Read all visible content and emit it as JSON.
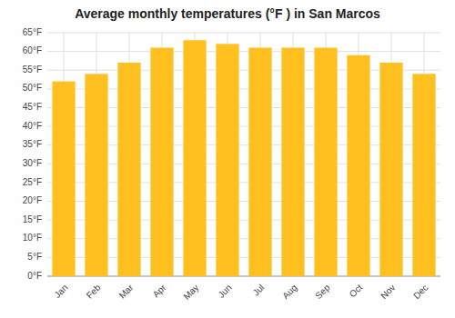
{
  "chart_data": {
    "type": "bar",
    "title": "Average monthly temperatures (°F ) in San Marcos",
    "categories": [
      "Jan",
      "Feb",
      "Mar",
      "Apr",
      "May",
      "Jun",
      "Jul",
      "Aug",
      "Sep",
      "Oct",
      "Nov",
      "Dec"
    ],
    "values": [
      52,
      54,
      57,
      61,
      63,
      62,
      61,
      61,
      61,
      59,
      57,
      54
    ],
    "color": "#FFC020",
    "ylim": [
      0,
      65
    ],
    "yticks": [
      {
        "value": 0,
        "label": "0°F"
      },
      {
        "value": 5,
        "label": "5°F"
      },
      {
        "value": 10,
        "label": "10°F"
      },
      {
        "value": 15,
        "label": "15°F"
      },
      {
        "value": 20,
        "label": "20°F"
      },
      {
        "value": 25,
        "label": "25°F"
      },
      {
        "value": 30,
        "label": "30°F"
      },
      {
        "value": 35,
        "label": "35°F"
      },
      {
        "value": 40,
        "label": "40°F"
      },
      {
        "value": 45,
        "label": "45°F"
      },
      {
        "value": 50,
        "label": "50°F"
      },
      {
        "value": 55,
        "label": "55°F"
      },
      {
        "value": 60,
        "label": "60°F"
      },
      {
        "value": 65,
        "label": "65°F"
      }
    ],
    "grid": true
  }
}
